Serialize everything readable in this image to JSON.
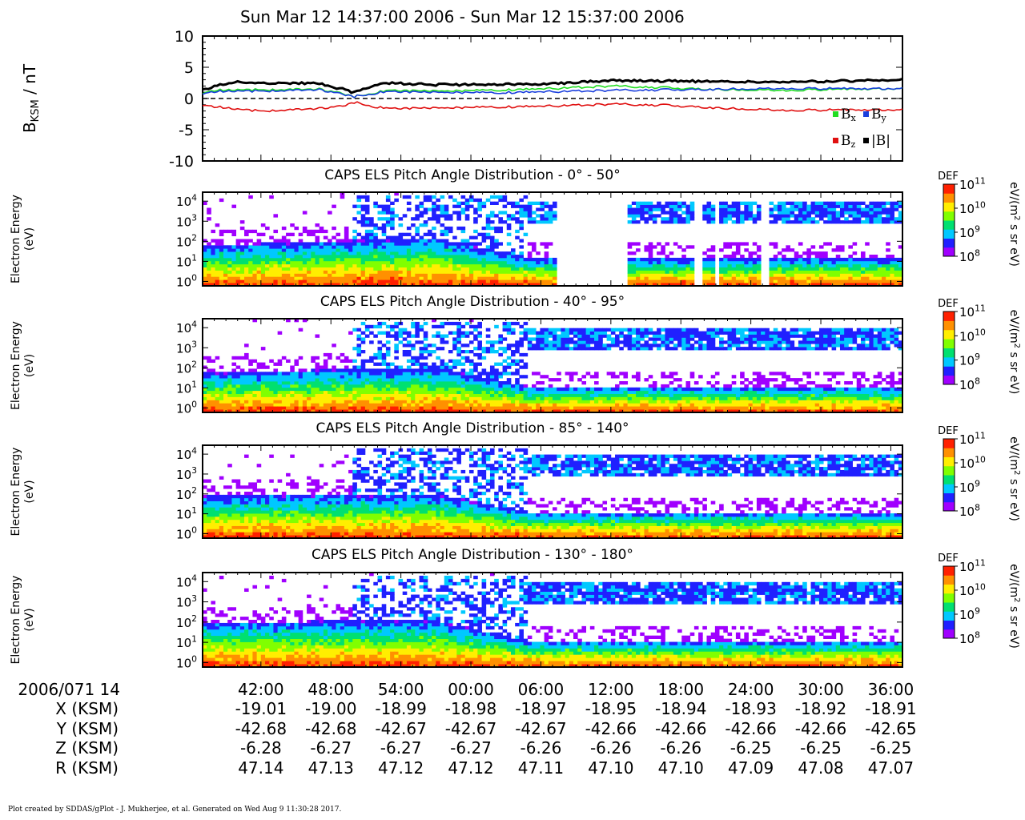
{
  "title": "Sun Mar 12 14:37:00 2006 - Sun Mar 12 15:37:00 2006",
  "footer": "Plot created by SDDAS/gPlot - J. Mukherjee, et al.  Generated on Wed Aug 9 11:30:28 2017.",
  "colors": {
    "bx": "#22dd22",
    "by": "#1a3fdd",
    "bz": "#e01010",
    "btot": "#000000",
    "colormap": [
      "#a000ff",
      "#2020ff",
      "#00c8ff",
      "#00e070",
      "#80ff00",
      "#ffee00",
      "#ff9000",
      "#ff2000"
    ]
  },
  "chart_data": [
    {
      "type": "line",
      "ylabel_main": "B",
      "ylabel_sub": "KSM",
      "ylabel_unit": " / nT",
      "ylim": [
        -10,
        10
      ],
      "yticks": [
        "10",
        "5",
        "0",
        "-5",
        "-10"
      ],
      "zero_line": "dashed",
      "x_unit": "minutes since 14:37",
      "legend": [
        {
          "key": "bx",
          "main": "B",
          "sub": "x"
        },
        {
          "key": "by",
          "main": "B",
          "sub": "y"
        },
        {
          "key": "bz",
          "main": "B",
          "sub": "z"
        },
        {
          "key": "btot",
          "main": "|B|",
          "sub": ""
        }
      ],
      "series": [
        {
          "key": "bx",
          "x": [
            0,
            1,
            3,
            5,
            10,
            12,
            13,
            15,
            16,
            20,
            25,
            30,
            35,
            40,
            45,
            50,
            55,
            60
          ],
          "values": [
            0.9,
            1.3,
            1.4,
            1.4,
            1.5,
            0.8,
            0.3,
            1.0,
            1.3,
            1.2,
            1.3,
            1.6,
            2.0,
            1.7,
            1.4,
            1.3,
            1.5,
            1.6
          ]
        },
        {
          "key": "by",
          "x": [
            0,
            1,
            3,
            5,
            10,
            12,
            13,
            15,
            16,
            20,
            25,
            30,
            35,
            40,
            45,
            50,
            55,
            60
          ],
          "values": [
            0.8,
            1.1,
            1.2,
            1.2,
            1.4,
            0.7,
            0.3,
            0.9,
            1.1,
            1.0,
            0.9,
            1.1,
            1.3,
            1.4,
            1.5,
            1.6,
            1.6,
            1.6
          ]
        },
        {
          "key": "bz",
          "x": [
            0,
            1,
            3,
            5,
            10,
            12,
            13,
            15,
            16,
            20,
            25,
            30,
            35,
            40,
            45,
            50,
            55,
            60
          ],
          "values": [
            -1.0,
            -1.3,
            -1.7,
            -2.0,
            -1.6,
            -1.2,
            -0.6,
            -1.4,
            -1.6,
            -1.5,
            -1.4,
            -1.2,
            -0.9,
            -1.1,
            -1.6,
            -1.9,
            -1.8,
            -1.8
          ]
        },
        {
          "key": "btot",
          "x": [
            0,
            1,
            3,
            5,
            10,
            12,
            13,
            15,
            16,
            20,
            25,
            30,
            35,
            40,
            45,
            50,
            55,
            60
          ],
          "values": [
            1.3,
            2.0,
            2.6,
            2.5,
            2.4,
            1.5,
            0.9,
            2.3,
            2.5,
            2.2,
            2.2,
            2.4,
            2.9,
            2.8,
            2.7,
            2.6,
            2.8,
            3.0
          ]
        }
      ]
    },
    {
      "type": "heatmap",
      "title": "CAPS ELS Pitch Angle Distribution - 0° - 50°",
      "ylabel": [
        "Electron Energy",
        "(eV)"
      ],
      "yscale": "log",
      "ylim": [
        0.6,
        28000
      ],
      "yticks": [
        {
          "b": "10",
          "e": "4"
        },
        {
          "b": "10",
          "e": "3"
        },
        {
          "b": "10",
          "e": "2"
        },
        {
          "b": "10",
          "e": "1"
        },
        {
          "b": "10",
          "e": "0"
        }
      ],
      "colorbar": {
        "label": "DEF",
        "units": [
          "eV/(m",
          "2",
          " s sr eV)"
        ],
        "range": [
          8,
          11
        ],
        "ticks": [
          {
            "b": "10",
            "e": "11"
          },
          {
            "b": "10",
            "e": "10"
          },
          {
            "b": "10",
            "e": "9"
          },
          {
            "b": "10",
            "e": "8"
          }
        ]
      },
      "gaps": [
        [
          30.5,
          36.4
        ],
        [
          42.3,
          42.9
        ],
        [
          43.8,
          44.3
        ],
        [
          48.0,
          48.5
        ]
      ],
      "low_band_top_eV": [
        [
          0,
          60
        ],
        [
          20,
          150
        ],
        [
          28,
          15
        ],
        [
          60,
          15
        ]
      ],
      "high_band_eV": [
        [
          13,
          30,
          0
        ],
        [
          28,
          60,
          3000
        ]
      ]
    },
    {
      "type": "heatmap",
      "title": "CAPS ELS Pitch Angle Distribution - 40° - 95°",
      "ylabel": [
        "Electron Energy",
        "(eV)"
      ],
      "yscale": "log",
      "ylim": [
        0.6,
        28000
      ],
      "yticks": [
        {
          "b": "10",
          "e": "4"
        },
        {
          "b": "10",
          "e": "3"
        },
        {
          "b": "10",
          "e": "2"
        },
        {
          "b": "10",
          "e": "1"
        },
        {
          "b": "10",
          "e": "0"
        }
      ],
      "colorbar": {
        "label": "DEF",
        "units": [
          "eV/(m",
          "2",
          " s sr eV)"
        ],
        "range": [
          8,
          11
        ],
        "ticks": [
          {
            "b": "10",
            "e": "11"
          },
          {
            "b": "10",
            "e": "10"
          },
          {
            "b": "10",
            "e": "9"
          },
          {
            "b": "10",
            "e": "8"
          }
        ]
      },
      "gaps": [
        [
          43.8,
          44.0
        ]
      ],
      "low_band_top_eV": [
        [
          0,
          60
        ],
        [
          20,
          100
        ],
        [
          28,
          12
        ],
        [
          60,
          12
        ]
      ],
      "high_band_eV": [
        [
          13,
          30,
          0
        ],
        [
          28,
          60,
          3000
        ]
      ]
    },
    {
      "type": "heatmap",
      "title": "CAPS ELS Pitch Angle Distribution - 85° - 140°",
      "ylabel": [
        "Electron Energy",
        "(eV)"
      ],
      "yscale": "log",
      "ylim": [
        0.6,
        28000
      ],
      "yticks": [
        {
          "b": "10",
          "e": "4"
        },
        {
          "b": "10",
          "e": "3"
        },
        {
          "b": "10",
          "e": "2"
        },
        {
          "b": "10",
          "e": "1"
        },
        {
          "b": "10",
          "e": "0"
        }
      ],
      "colorbar": {
        "label": "DEF",
        "units": [
          "eV/(m",
          "2",
          " s sr eV)"
        ],
        "range": [
          8,
          11
        ],
        "ticks": [
          {
            "b": "10",
            "e": "11"
          },
          {
            "b": "10",
            "e": "10"
          },
          {
            "b": "10",
            "e": "9"
          },
          {
            "b": "10",
            "e": "8"
          }
        ]
      },
      "gaps": [
        [
          43.8,
          44.0
        ]
      ],
      "low_band_top_eV": [
        [
          0,
          80
        ],
        [
          20,
          100
        ],
        [
          28,
          12
        ],
        [
          60,
          12
        ]
      ],
      "high_band_eV": [
        [
          13,
          30,
          0
        ],
        [
          28,
          60,
          3000
        ]
      ]
    },
    {
      "type": "heatmap",
      "title": "CAPS ELS Pitch Angle Distribution - 130° - 180°",
      "ylabel": [
        "Electron Energy",
        "(eV)"
      ],
      "yscale": "log",
      "ylim": [
        0.6,
        28000
      ],
      "yticks": [
        {
          "b": "10",
          "e": "4"
        },
        {
          "b": "10",
          "e": "3"
        },
        {
          "b": "10",
          "e": "2"
        },
        {
          "b": "10",
          "e": "1"
        },
        {
          "b": "10",
          "e": "0"
        }
      ],
      "colorbar": {
        "label": "DEF",
        "units": [
          "eV/(m",
          "2",
          " s sr eV)"
        ],
        "range": [
          8,
          11
        ],
        "ticks": [
          {
            "b": "10",
            "e": "11"
          },
          {
            "b": "10",
            "e": "10"
          },
          {
            "b": "10",
            "e": "9"
          },
          {
            "b": "10",
            "e": "8"
          }
        ]
      },
      "gaps": [
        [
          43.8,
          44.0
        ]
      ],
      "low_band_top_eV": [
        [
          0,
          100
        ],
        [
          20,
          120
        ],
        [
          28,
          12
        ],
        [
          60,
          12
        ]
      ],
      "high_band_eV": [
        [
          13,
          30,
          0
        ],
        [
          28,
          60,
          2500
        ]
      ]
    }
  ],
  "time_axis": {
    "row_labels": [
      "2006/071 14",
      "X (KSM)",
      "Y (KSM)",
      "Z (KSM)",
      "R (KSM)"
    ],
    "tick_minutes": [
      5,
      11,
      17,
      23,
      29,
      35,
      41,
      47,
      53,
      59
    ],
    "columns": [
      {
        "time": "42:00",
        "x": "-19.01",
        "y": "-42.68",
        "z": "-6.28",
        "r": "47.14"
      },
      {
        "time": "48:00",
        "x": "-19.00",
        "y": "-42.68",
        "z": "-6.27",
        "r": "47.13"
      },
      {
        "time": "54:00",
        "x": "-18.99",
        "y": "-42.67",
        "z": "-6.27",
        "r": "47.12"
      },
      {
        "time": "00:00",
        "x": "-18.98",
        "y": "-42.67",
        "z": "-6.27",
        "r": "47.12"
      },
      {
        "time": "06:00",
        "x": "-18.97",
        "y": "-42.67",
        "z": "-6.26",
        "r": "47.11"
      },
      {
        "time": "12:00",
        "x": "-18.95",
        "y": "-42.66",
        "z": "-6.26",
        "r": "47.10"
      },
      {
        "time": "18:00",
        "x": "-18.94",
        "y": "-42.66",
        "z": "-6.26",
        "r": "47.10"
      },
      {
        "time": "24:00",
        "x": "-18.93",
        "y": "-42.66",
        "z": "-6.25",
        "r": "47.09"
      },
      {
        "time": "30:00",
        "x": "-18.92",
        "y": "-42.66",
        "z": "-6.25",
        "r": "47.08"
      },
      {
        "time": "36:00",
        "x": "-18.91",
        "y": "-42.65",
        "z": "-6.25",
        "r": "47.07"
      }
    ]
  }
}
